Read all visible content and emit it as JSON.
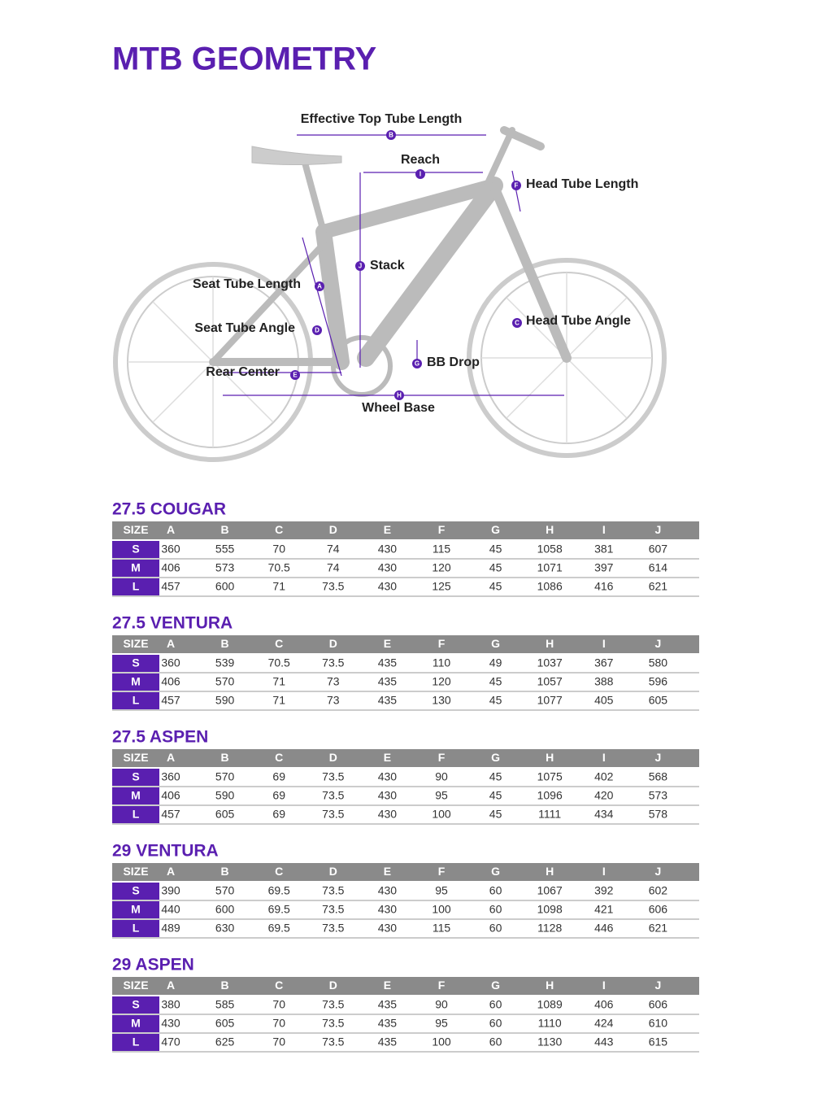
{
  "title": "MTB GEOMETRY",
  "diagram": {
    "labels": [
      {
        "text": "Effective Top Tube Length",
        "letter": "B"
      },
      {
        "text": "Reach",
        "letter": "I"
      },
      {
        "text": "Head Tube Length",
        "letter": "F"
      },
      {
        "text": "Stack",
        "letter": "J"
      },
      {
        "text": "Seat Tube Length",
        "letter": "A"
      },
      {
        "text": "Seat Tube Angle",
        "letter": "D"
      },
      {
        "text": "Head Tube Angle",
        "letter": "C"
      },
      {
        "text": "BB Drop",
        "letter": "G"
      },
      {
        "text": "Rear Center",
        "letter": "E"
      },
      {
        "text": "Wheel Base",
        "letter": "H"
      }
    ]
  },
  "tables": [
    {
      "name": "27.5 COUGAR",
      "header": [
        "SIZE",
        "A",
        "B",
        "C",
        "D",
        "E",
        "F",
        "G",
        "H",
        "I",
        "J"
      ],
      "rows": [
        [
          "S",
          360,
          555,
          70,
          74,
          430,
          115,
          45,
          1058,
          381,
          607
        ],
        [
          "M",
          406,
          573,
          70.5,
          74,
          430,
          120,
          45,
          1071,
          397,
          614
        ],
        [
          "L",
          457,
          600,
          71,
          73.5,
          430,
          125,
          45,
          1086,
          416,
          621
        ]
      ]
    },
    {
      "name": "27.5 VENTURA",
      "header": [
        "SIZE",
        "A",
        "B",
        "C",
        "D",
        "E",
        "F",
        "G",
        "H",
        "I",
        "J"
      ],
      "rows": [
        [
          "S",
          360,
          539,
          70.5,
          73.5,
          435,
          110,
          49,
          1037,
          367,
          580
        ],
        [
          "M",
          406,
          570,
          71,
          73,
          435,
          120,
          45,
          1057,
          388,
          596
        ],
        [
          "L",
          457,
          590,
          71,
          73,
          435,
          130,
          45,
          1077,
          405,
          605
        ]
      ]
    },
    {
      "name": "27.5 ASPEN",
      "header": [
        "SIZE",
        "A",
        "B",
        "C",
        "D",
        "E",
        "F",
        "G",
        "H",
        "I",
        "J"
      ],
      "rows": [
        [
          "S",
          360,
          570,
          69,
          73.5,
          430,
          90,
          45,
          1075,
          402,
          568
        ],
        [
          "M",
          406,
          590,
          69,
          73.5,
          430,
          95,
          45,
          1096,
          420,
          573
        ],
        [
          "L",
          457,
          605,
          69,
          73.5,
          430,
          100,
          45,
          1111,
          434,
          578
        ]
      ]
    },
    {
      "name": "29 VENTURA",
      "header": [
        "SIZE",
        "A",
        "B",
        "C",
        "D",
        "E",
        "F",
        "G",
        "H",
        "I",
        "J"
      ],
      "rows": [
        [
          "S",
          390,
          570,
          69.5,
          73.5,
          430,
          95,
          60,
          1067,
          392,
          602
        ],
        [
          "M",
          440,
          600,
          69.5,
          73.5,
          430,
          100,
          60,
          1098,
          421,
          606
        ],
        [
          "L",
          489,
          630,
          69.5,
          73.5,
          430,
          115,
          60,
          1128,
          446,
          621
        ]
      ]
    },
    {
      "name": "29 ASPEN",
      "header": [
        "SIZE",
        "A",
        "B",
        "C",
        "D",
        "E",
        "F",
        "G",
        "H",
        "I",
        "J"
      ],
      "rows": [
        [
          "S",
          380,
          585,
          70,
          73.5,
          435,
          90,
          60,
          1089,
          406,
          606
        ],
        [
          "M",
          430,
          605,
          70,
          73.5,
          435,
          95,
          60,
          1110,
          424,
          610
        ],
        [
          "L",
          470,
          625,
          70,
          73.5,
          435,
          100,
          60,
          1130,
          443,
          615
        ]
      ]
    }
  ]
}
